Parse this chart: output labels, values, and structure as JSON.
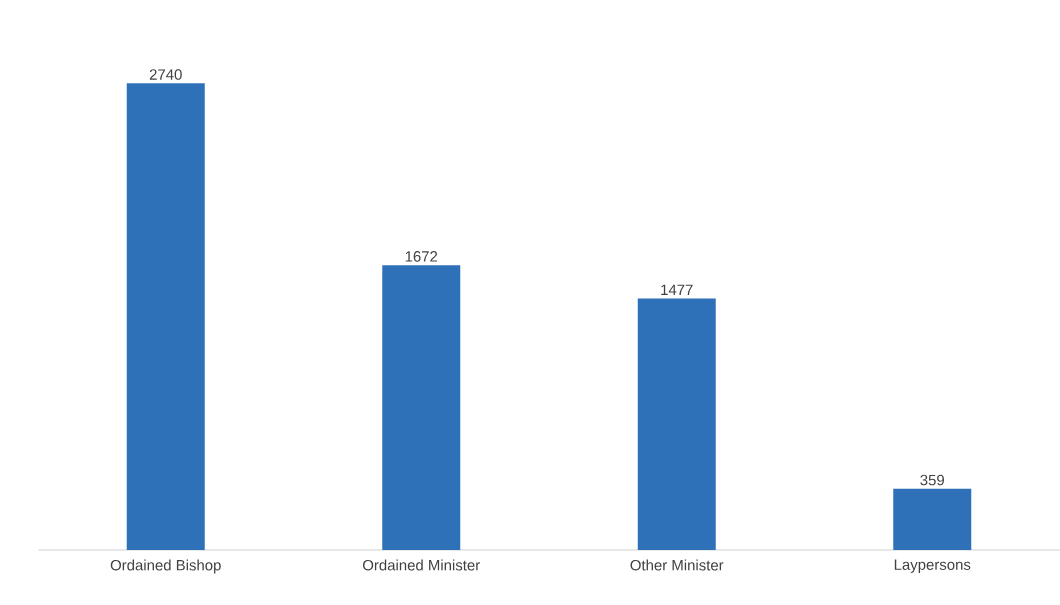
{
  "chart_data": {
    "type": "bar",
    "categories": [
      "Ordained Bishop",
      "Ordained Minister",
      "Other Minister",
      "Laypersons"
    ],
    "values": [
      2740,
      1672,
      1477,
      359
    ],
    "color": "#2f71b8",
    "data_labels": true
  }
}
